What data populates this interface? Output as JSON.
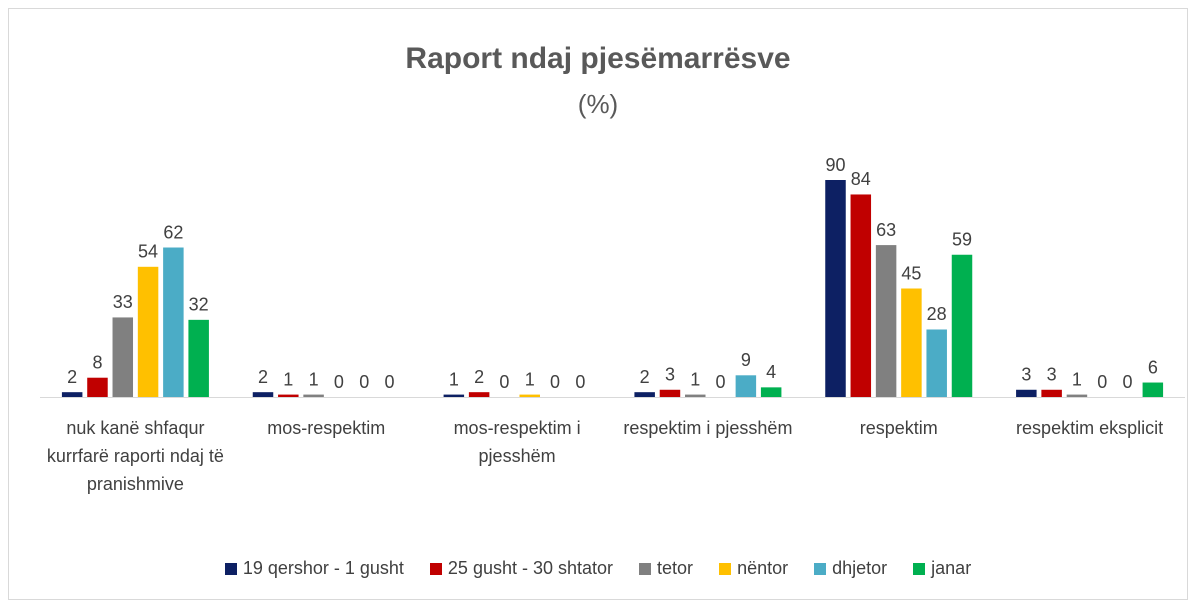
{
  "chart_data": {
    "type": "bar",
    "title": "Raport ndaj pjesëmarrësve",
    "subtitle": "(%)",
    "categories": [
      "nuk kanë shfaqur kurrfarë raporti ndaj të pranishmive",
      "mos-respektim",
      "mos-respektim i pjesshëm",
      "respektim i pjesshëm",
      "respektim",
      "respektim eksplicit"
    ],
    "series": [
      {
        "name": "19 qershor - 1 gusht",
        "color": "#0d2063",
        "values": [
          2,
          2,
          1,
          2,
          90,
          3
        ]
      },
      {
        "name": "25 gusht - 30 shtator",
        "color": "#c00000",
        "values": [
          8,
          1,
          2,
          3,
          84,
          3
        ]
      },
      {
        "name": "tetor",
        "color": "#808080",
        "values": [
          33,
          1,
          0,
          1,
          63,
          1
        ]
      },
      {
        "name": "nëntor",
        "color": "#ffc000",
        "values": [
          54,
          0,
          1,
          0,
          45,
          0
        ]
      },
      {
        "name": "dhjetor",
        "color": "#4bacc6",
        "values": [
          62,
          0,
          0,
          9,
          28,
          0
        ]
      },
      {
        "name": "janar",
        "color": "#00b050",
        "values": [
          32,
          0,
          0,
          4,
          59,
          6
        ]
      }
    ],
    "legend": "bottom"
  }
}
